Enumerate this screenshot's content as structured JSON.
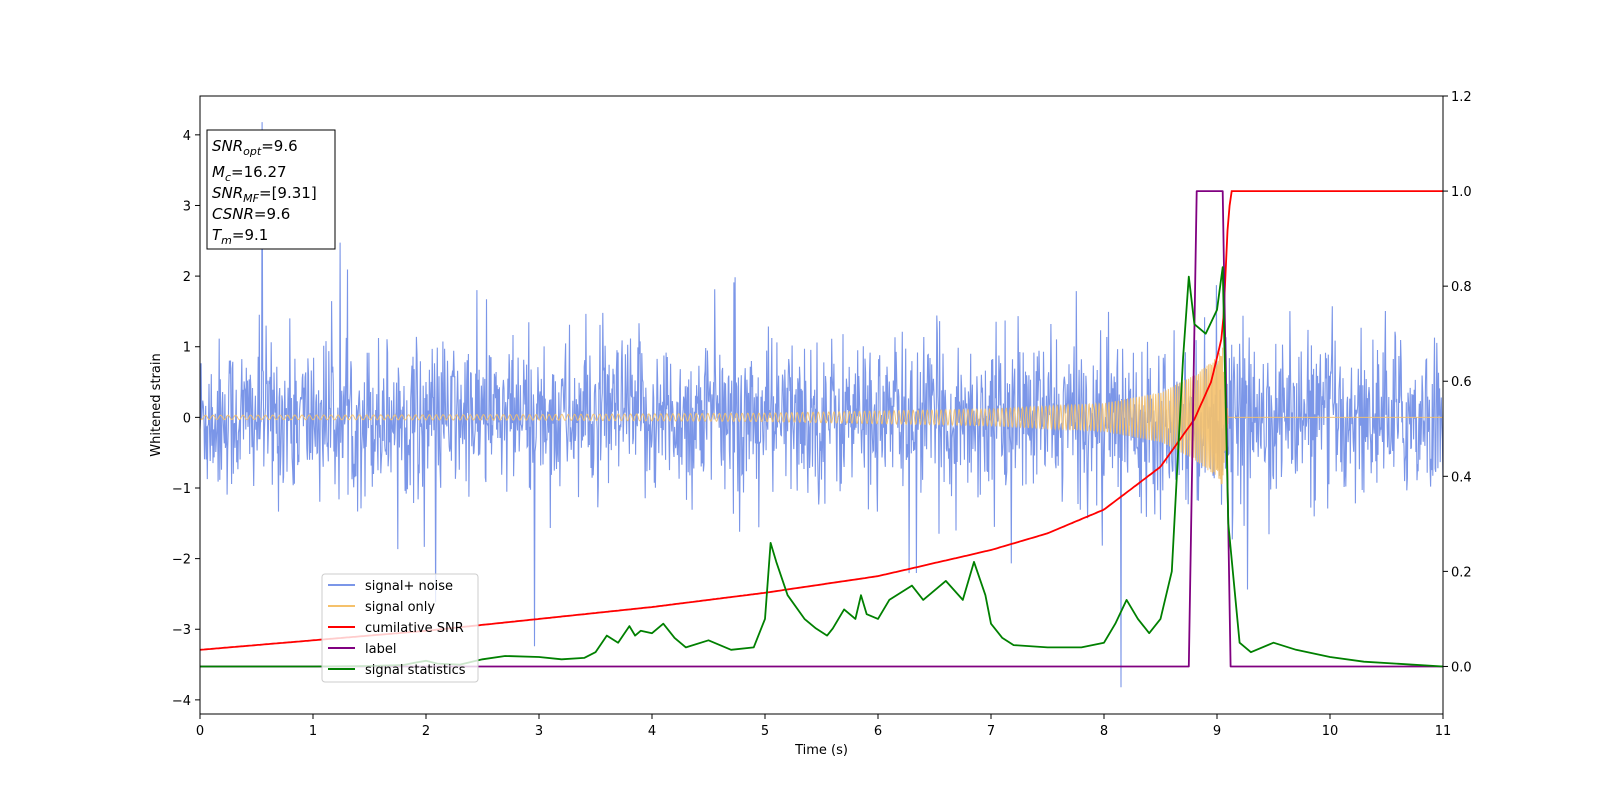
{
  "chart_data": {
    "type": "line",
    "title": "",
    "xlabel": "Time (s)",
    "ylabel": "Whitened strain",
    "xlim": [
      0,
      11
    ],
    "ylim": [
      -4.2,
      4.55
    ],
    "y2lim": [
      -0.1,
      1.2
    ],
    "grid": false,
    "legend_placement": "lower-left",
    "x_ticks": [
      "0",
      "1",
      "2",
      "3",
      "4",
      "5",
      "6",
      "7",
      "8",
      "9",
      "10",
      "11"
    ],
    "y_ticks": [
      "4",
      "3",
      "2",
      "1",
      "0",
      "−1",
      "−2",
      "−3",
      "−4"
    ],
    "y2_ticks": [
      "1.2",
      "1.0",
      "0.8",
      "0.6",
      "0.4",
      "0.2",
      "0.0"
    ],
    "info_box": [
      {
        "base": "SNR",
        "sub": "opt",
        "value": "=9.6"
      },
      {
        "base": "M",
        "sub": "c",
        "value": "=16.27"
      },
      {
        "base": "SNR",
        "sub": "MF",
        "value": "=[9.31]"
      },
      {
        "base": "CSNR",
        "sub": "",
        "value": "=9.6"
      },
      {
        "base": "T",
        "sub": "m",
        "value": "=9.1"
      }
    ],
    "series": [
      {
        "name": "signal+ noise",
        "axis": "left",
        "color": "#7b96e8",
        "kind": "whitened noise, roughly ±1.5 with spikes to about ±3; max about 4.2 at t≈0.55, min about −3.8 at t≈8.15"
      },
      {
        "name": "signal only",
        "axis": "left",
        "color": "#f5c16b",
        "kind": "chirp ending at t≈9.1",
        "amplitude_points": [
          [
            0,
            0.03
          ],
          [
            3,
            0.04
          ],
          [
            5,
            0.06
          ],
          [
            7,
            0.12
          ],
          [
            8,
            0.2
          ],
          [
            8.5,
            0.35
          ],
          [
            8.8,
            0.6
          ],
          [
            9.0,
            0.85
          ],
          [
            9.05,
            1.0
          ],
          [
            9.1,
            0
          ]
        ],
        "end_time": 9.1
      },
      {
        "name": "cumilative SNR",
        "axis": "right",
        "color": "#ff0000",
        "points": [
          [
            0,
            0.035
          ],
          [
            1,
            0.055
          ],
          [
            2,
            0.075
          ],
          [
            3,
            0.1
          ],
          [
            4,
            0.125
          ],
          [
            5,
            0.155
          ],
          [
            6,
            0.19
          ],
          [
            7,
            0.245
          ],
          [
            7.5,
            0.28
          ],
          [
            8,
            0.33
          ],
          [
            8.5,
            0.42
          ],
          [
            8.8,
            0.52
          ],
          [
            8.95,
            0.6
          ],
          [
            9.05,
            0.7
          ],
          [
            9.1,
            0.95
          ],
          [
            9.13,
            1.0
          ],
          [
            11,
            1.0
          ]
        ]
      },
      {
        "name": "label",
        "axis": "right",
        "color": "#800080",
        "points": [
          [
            0,
            0
          ],
          [
            8.75,
            0
          ],
          [
            8.82,
            1.0
          ],
          [
            9.05,
            1.0
          ],
          [
            9.12,
            0
          ],
          [
            11,
            0
          ]
        ]
      },
      {
        "name": "signal statistics",
        "axis": "right",
        "color": "#008000",
        "points": [
          [
            0,
            0
          ],
          [
            1,
            0
          ],
          [
            1.5,
            0.001
          ],
          [
            1.8,
            0.003
          ],
          [
            1.9,
            0.008
          ],
          [
            2,
            0.012
          ],
          [
            2.1,
            0.006
          ],
          [
            2.3,
            0.004
          ],
          [
            2.5,
            0.015
          ],
          [
            2.7,
            0.022
          ],
          [
            3,
            0.02
          ],
          [
            3.2,
            0.015
          ],
          [
            3.4,
            0.018
          ],
          [
            3.5,
            0.03
          ],
          [
            3.6,
            0.065
          ],
          [
            3.7,
            0.05
          ],
          [
            3.8,
            0.085
          ],
          [
            3.85,
            0.065
          ],
          [
            3.9,
            0.075
          ],
          [
            4,
            0.07
          ],
          [
            4.1,
            0.09
          ],
          [
            4.2,
            0.06
          ],
          [
            4.3,
            0.04
          ],
          [
            4.5,
            0.055
          ],
          [
            4.7,
            0.035
          ],
          [
            4.9,
            0.04
          ],
          [
            5,
            0.1
          ],
          [
            5.05,
            0.26
          ],
          [
            5.1,
            0.22
          ],
          [
            5.2,
            0.15
          ],
          [
            5.35,
            0.1
          ],
          [
            5.45,
            0.08
          ],
          [
            5.55,
            0.065
          ],
          [
            5.6,
            0.08
          ],
          [
            5.7,
            0.12
          ],
          [
            5.8,
            0.1
          ],
          [
            5.85,
            0.15
          ],
          [
            5.9,
            0.11
          ],
          [
            6,
            0.1
          ],
          [
            6.1,
            0.14
          ],
          [
            6.3,
            0.17
          ],
          [
            6.4,
            0.14
          ],
          [
            6.6,
            0.18
          ],
          [
            6.75,
            0.14
          ],
          [
            6.85,
            0.22
          ],
          [
            6.95,
            0.15
          ],
          [
            7,
            0.09
          ],
          [
            7.1,
            0.06
          ],
          [
            7.2,
            0.045
          ],
          [
            7.5,
            0.04
          ],
          [
            7.8,
            0.04
          ],
          [
            8,
            0.05
          ],
          [
            8.1,
            0.09
          ],
          [
            8.2,
            0.14
          ],
          [
            8.3,
            0.1
          ],
          [
            8.4,
            0.07
          ],
          [
            8.5,
            0.1
          ],
          [
            8.6,
            0.2
          ],
          [
            8.7,
            0.65
          ],
          [
            8.75,
            0.82
          ],
          [
            8.8,
            0.72
          ],
          [
            8.9,
            0.7
          ],
          [
            9.0,
            0.75
          ],
          [
            9.05,
            0.84
          ],
          [
            9.1,
            0.3
          ],
          [
            9.2,
            0.05
          ],
          [
            9.3,
            0.03
          ],
          [
            9.5,
            0.05
          ],
          [
            9.7,
            0.035
          ],
          [
            10,
            0.02
          ],
          [
            10.3,
            0.01
          ],
          [
            11,
            0
          ]
        ]
      }
    ]
  }
}
